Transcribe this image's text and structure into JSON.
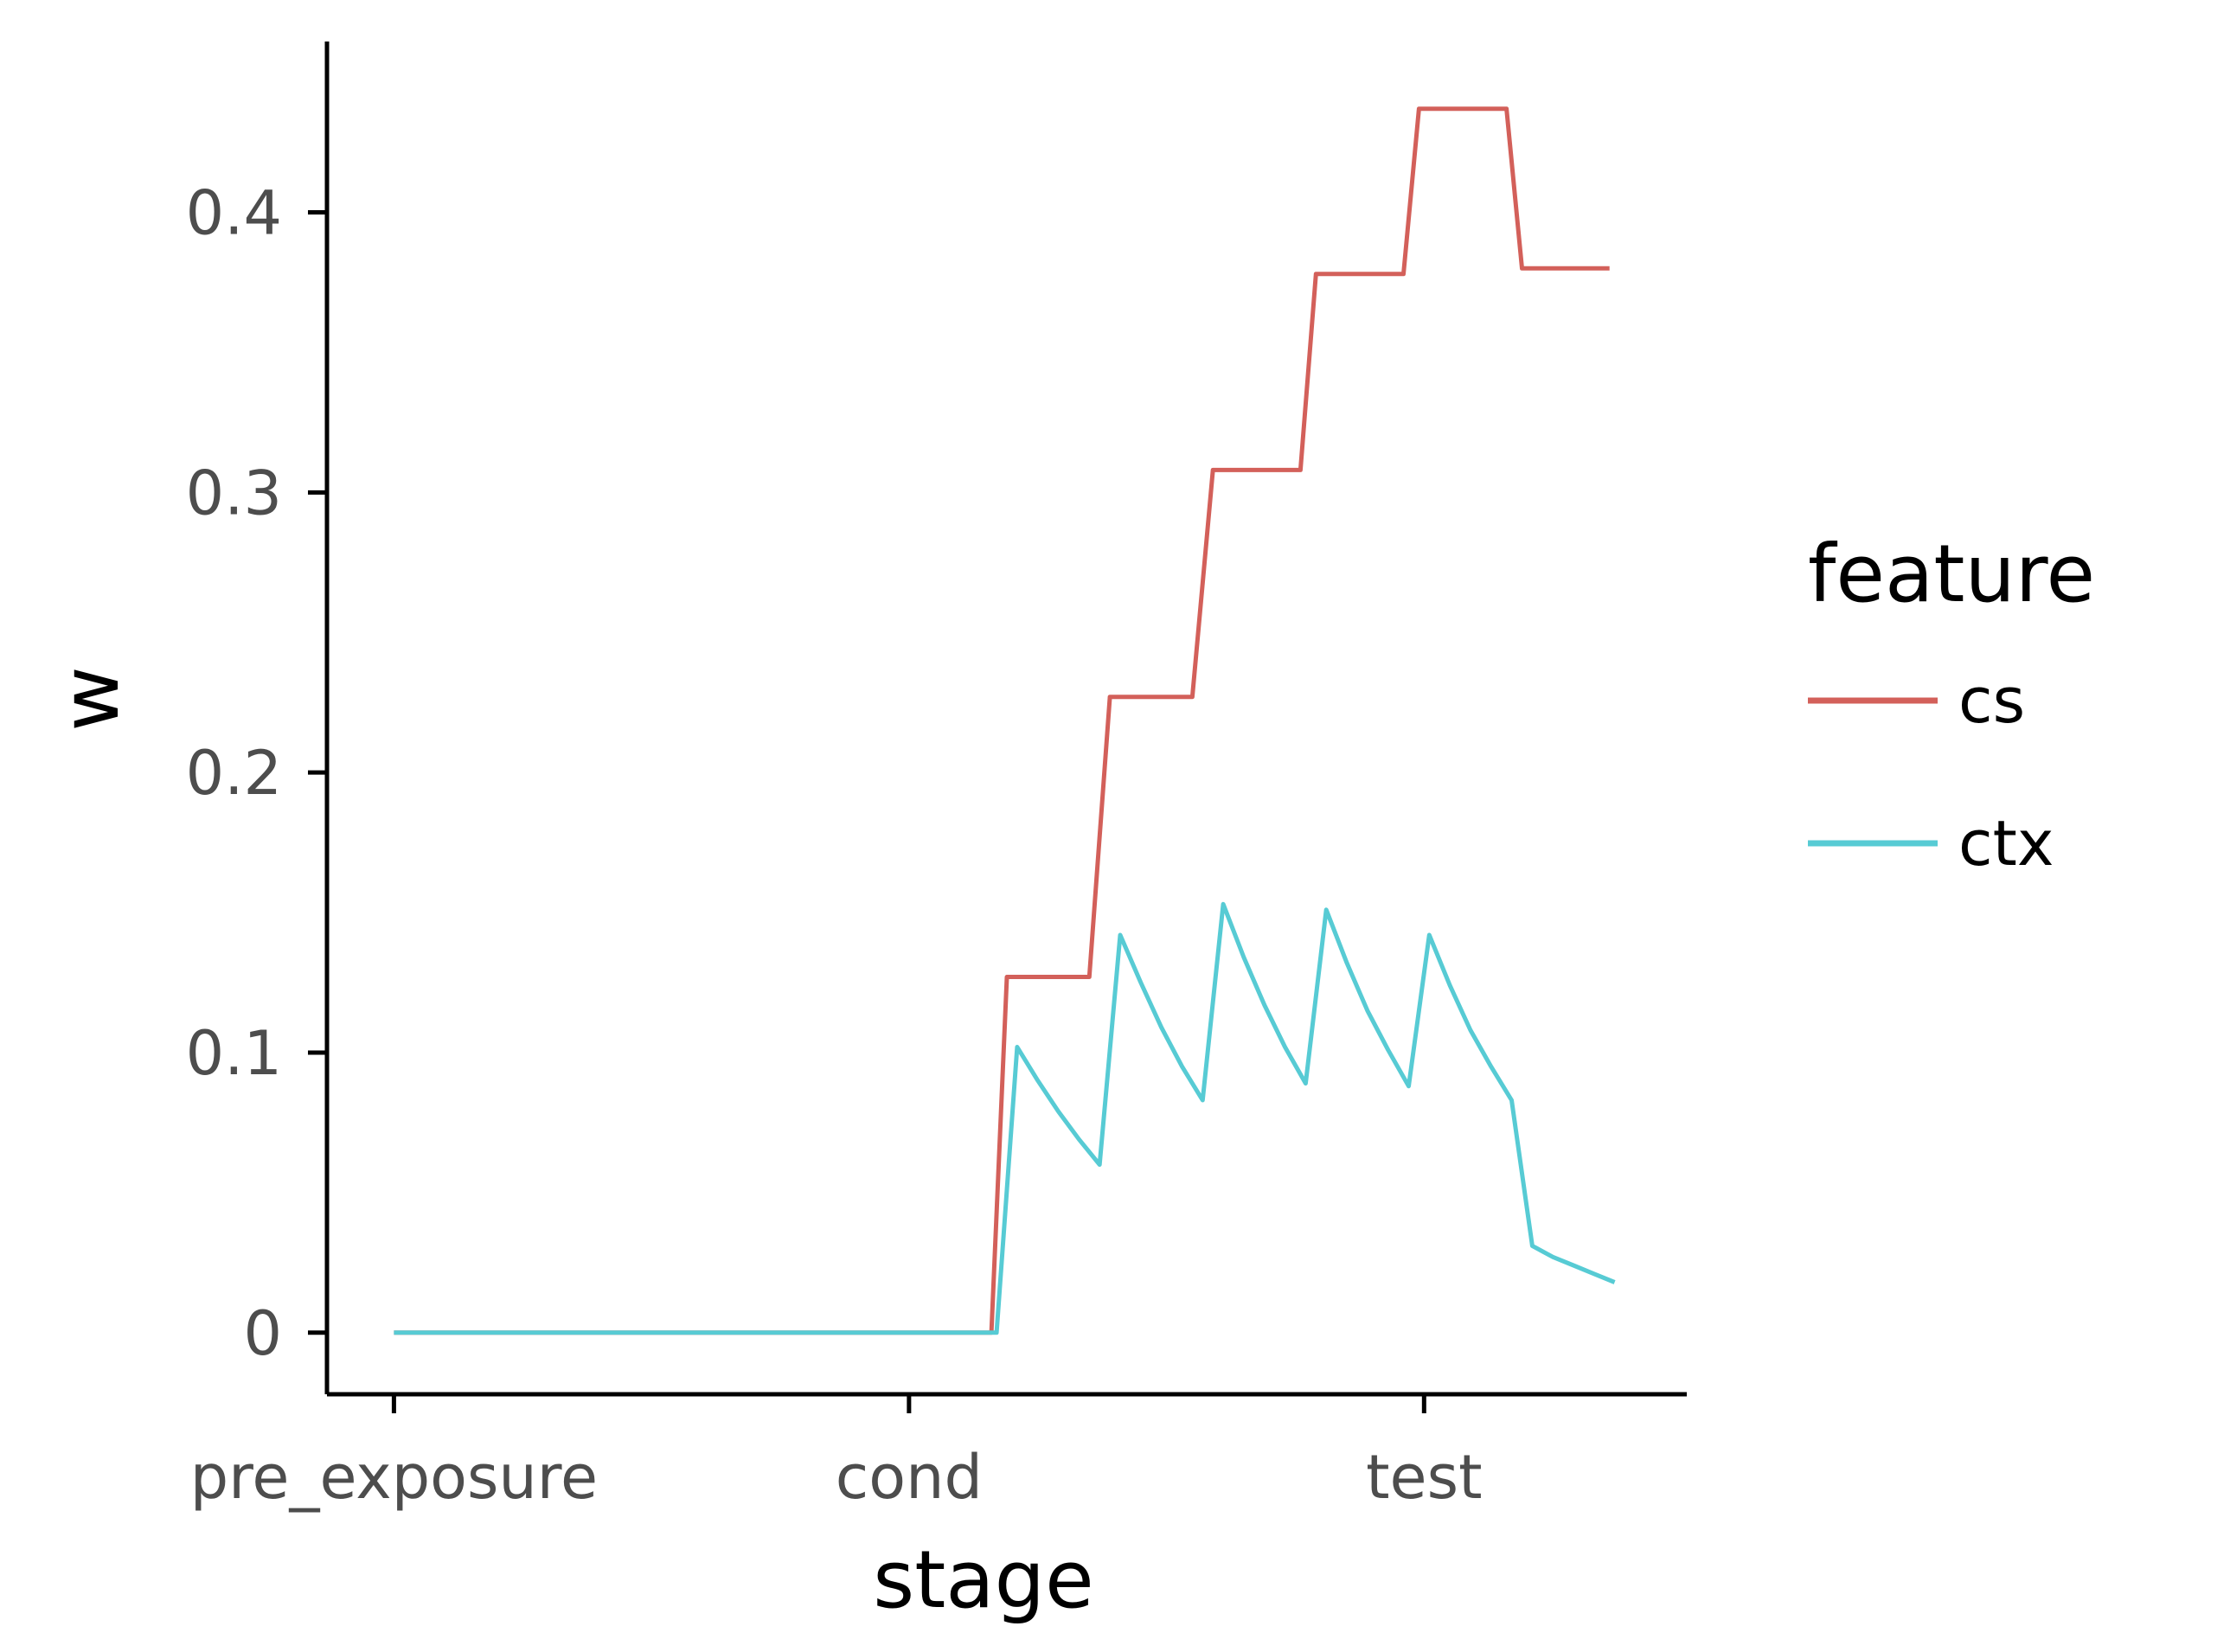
{
  "chart_data": {
    "type": "line",
    "xlabel": "stage",
    "ylabel": "w",
    "x_categories": [
      "pre_exposure",
      "cond",
      "test"
    ],
    "xlim": [
      -0.13,
      2.51
    ],
    "ylim": [
      -0.022,
      0.461
    ],
    "yticks": [
      {
        "value": 0,
        "label": "0"
      },
      {
        "value": 0.1,
        "label": "0.1"
      },
      {
        "value": 0.2,
        "label": "0.2"
      },
      {
        "value": 0.3,
        "label": "0.3"
      },
      {
        "value": 0.4,
        "label": "0.4"
      }
    ],
    "grid": false,
    "legend": {
      "title": "feature",
      "position": "right"
    },
    "series": [
      {
        "name": "cs",
        "color": "#D3605A",
        "points": [
          [
            0.0,
            0.0
          ],
          [
            1.16,
            0.0
          ],
          [
            1.19,
            0.127
          ],
          [
            1.35,
            0.127
          ],
          [
            1.39,
            0.227
          ],
          [
            1.55,
            0.227
          ],
          [
            1.59,
            0.308
          ],
          [
            1.76,
            0.308
          ],
          [
            1.79,
            0.378
          ],
          [
            1.96,
            0.378
          ],
          [
            1.99,
            0.437
          ],
          [
            2.16,
            0.437
          ],
          [
            2.19,
            0.38
          ],
          [
            2.36,
            0.38
          ]
        ]
      },
      {
        "name": "ctx",
        "color": "#57CBD4",
        "points": [
          [
            0.0,
            0.0
          ],
          [
            1.17,
            0.0
          ],
          [
            1.21,
            0.102
          ],
          [
            1.25,
            0.09
          ],
          [
            1.29,
            0.079
          ],
          [
            1.33,
            0.069
          ],
          [
            1.37,
            0.06
          ],
          [
            1.41,
            0.142
          ],
          [
            1.45,
            0.125
          ],
          [
            1.49,
            0.109
          ],
          [
            1.53,
            0.095
          ],
          [
            1.57,
            0.083
          ],
          [
            1.61,
            0.153
          ],
          [
            1.65,
            0.134
          ],
          [
            1.69,
            0.117
          ],
          [
            1.73,
            0.102
          ],
          [
            1.77,
            0.089
          ],
          [
            1.81,
            0.151
          ],
          [
            1.85,
            0.132
          ],
          [
            1.89,
            0.115
          ],
          [
            1.93,
            0.101
          ],
          [
            1.97,
            0.088
          ],
          [
            2.01,
            0.142
          ],
          [
            2.05,
            0.124
          ],
          [
            2.09,
            0.108
          ],
          [
            2.13,
            0.095
          ],
          [
            2.17,
            0.083
          ],
          [
            2.21,
            0.031
          ],
          [
            2.25,
            0.027
          ],
          [
            2.29,
            0.024
          ],
          [
            2.33,
            0.021
          ],
          [
            2.37,
            0.018
          ]
        ]
      }
    ]
  }
}
